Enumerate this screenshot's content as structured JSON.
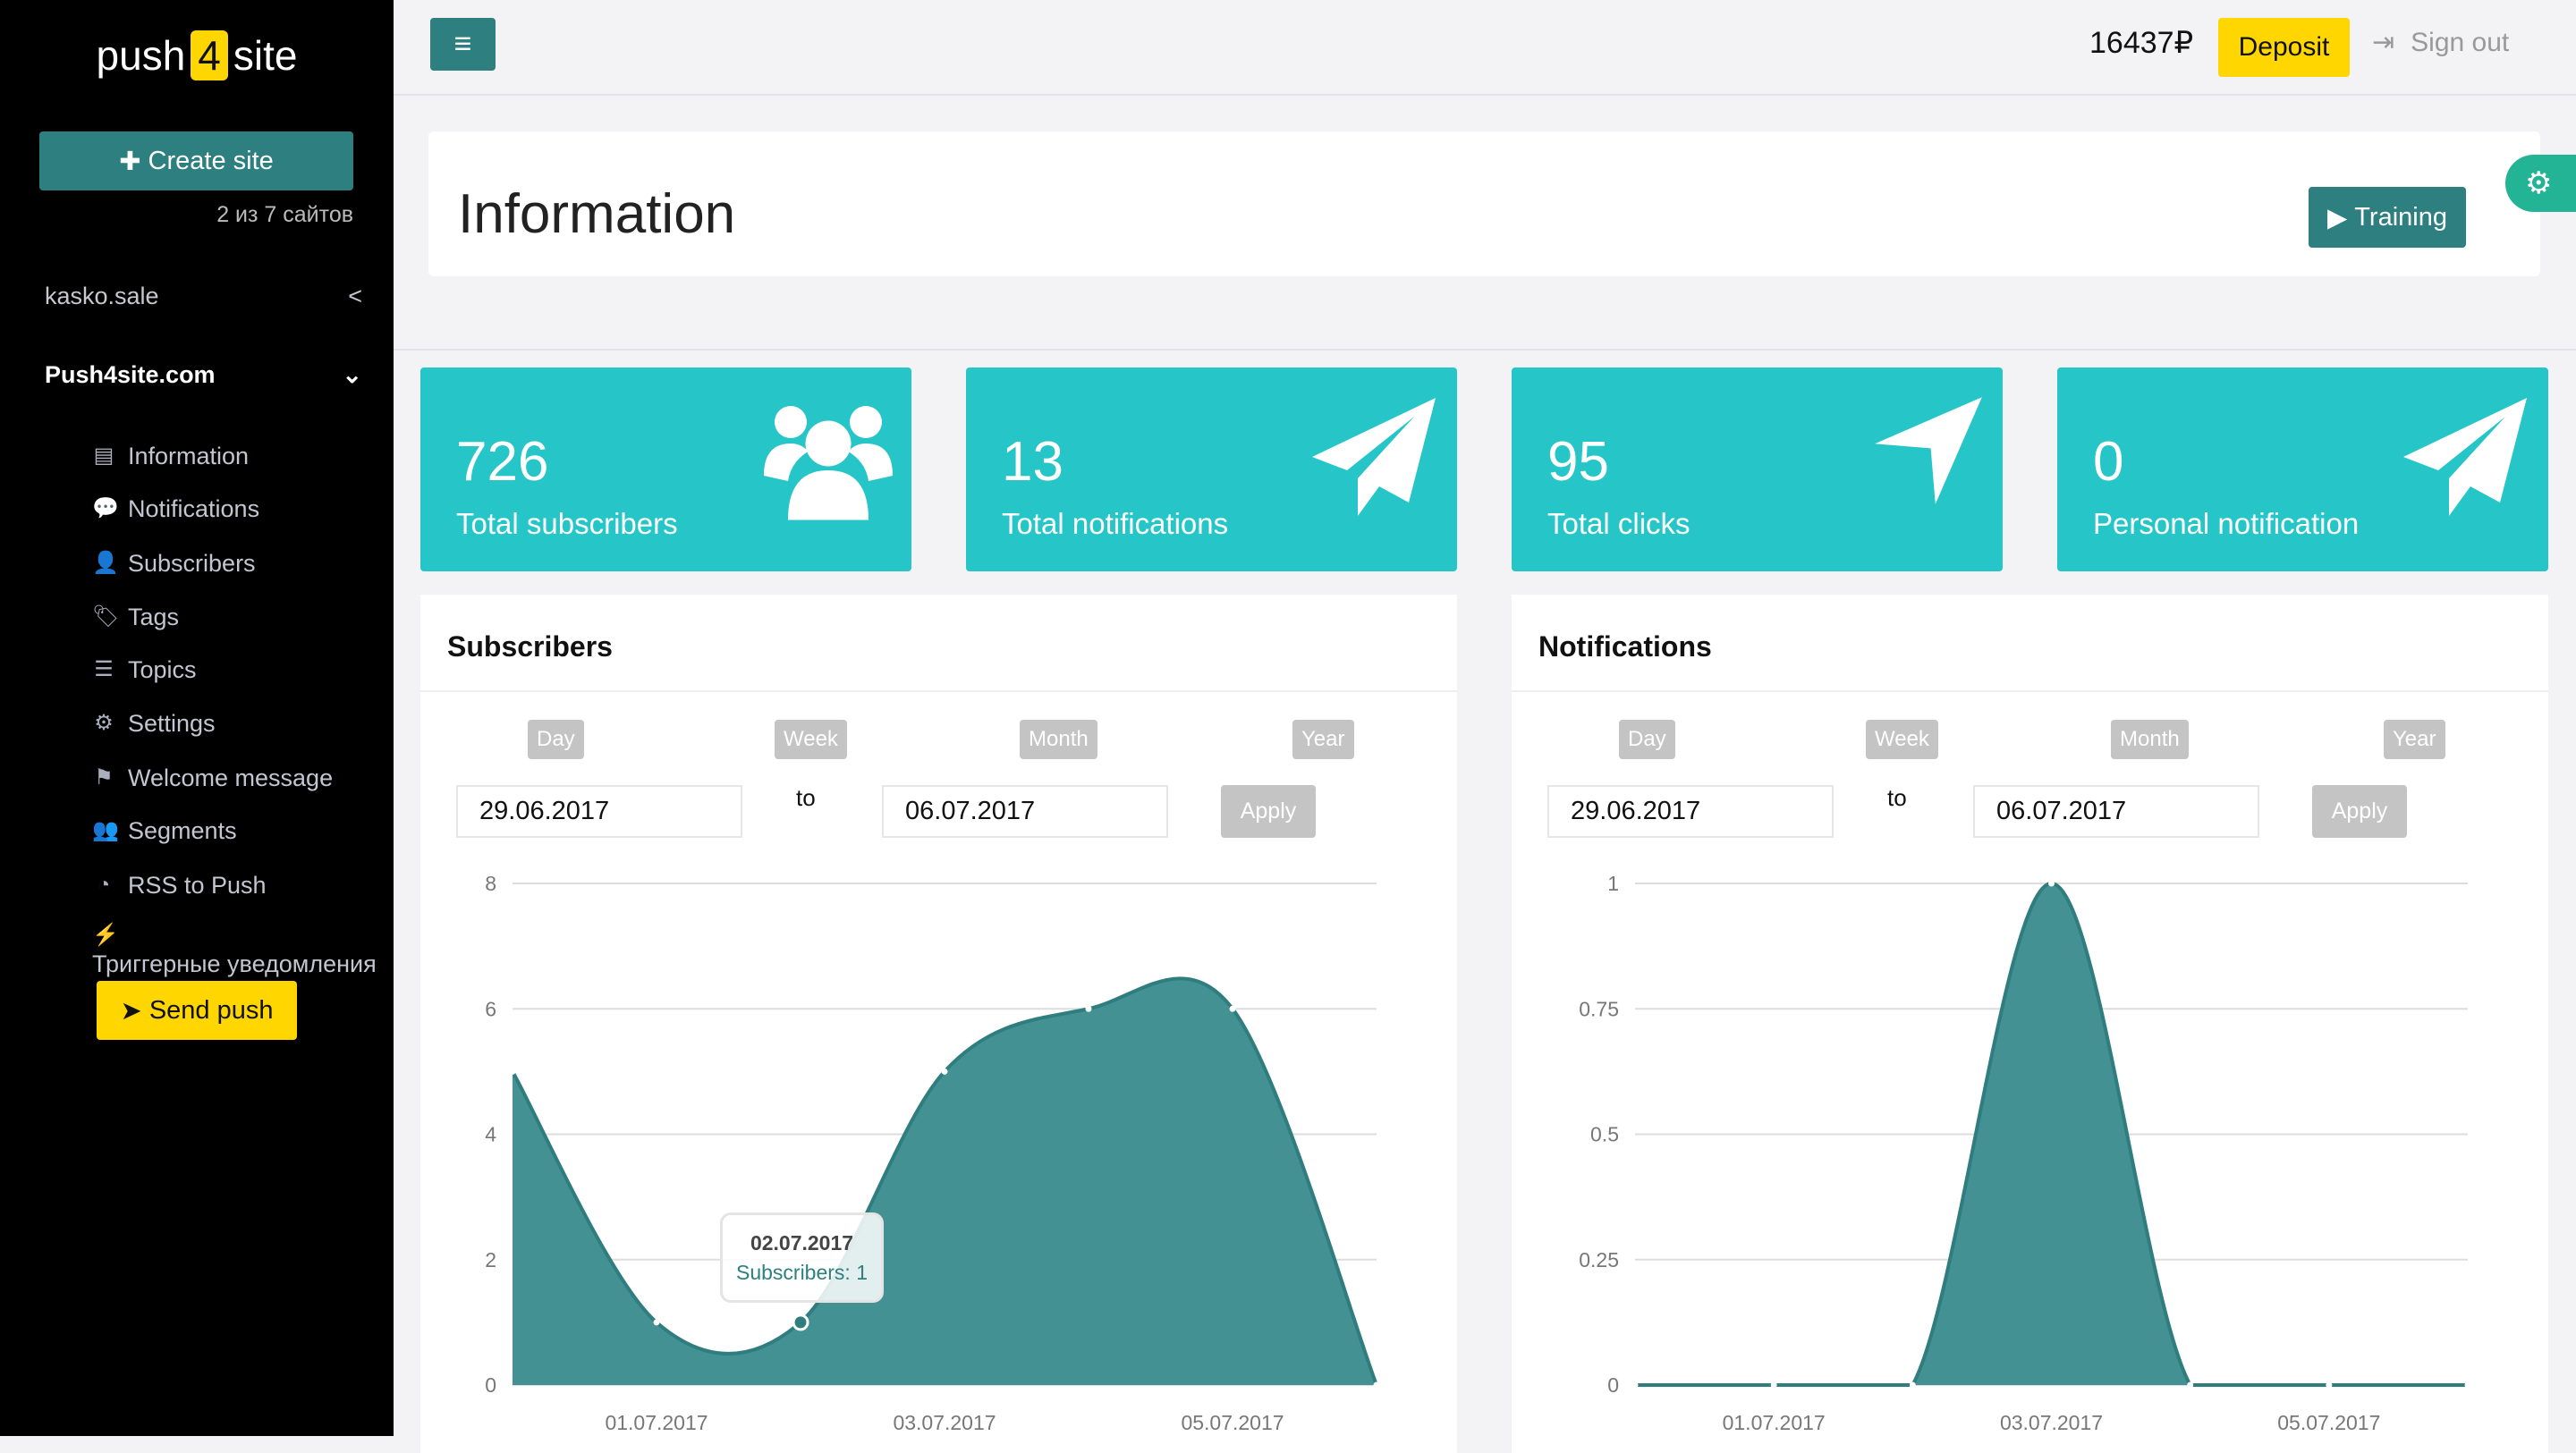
{
  "sidebar": {
    "logo": {
      "left": "push",
      "mid": "4",
      "right": "site"
    },
    "create_site": "Create site",
    "sites_count": "2 из 7 сайтов",
    "sites": [
      {
        "name": "kasko.sale",
        "chevron": "<"
      },
      {
        "name": "Push4site.com",
        "chevron": "⌄"
      }
    ],
    "items": [
      {
        "label": "Information",
        "icon": "list-alt-icon"
      },
      {
        "label": "Notifications",
        "icon": "comment-icon"
      },
      {
        "label": "Subscribers",
        "icon": "user-icon"
      },
      {
        "label": "Tags",
        "icon": "tag-icon"
      },
      {
        "label": "Topics",
        "icon": "bars-icon"
      },
      {
        "label": "Settings",
        "icon": "gear-icon"
      },
      {
        "label": "Welcome message",
        "icon": "flag-icon"
      },
      {
        "label": "Segments",
        "icon": "users-icon"
      },
      {
        "label": "RSS to Push",
        "icon": "rss-icon"
      },
      {
        "label": "Триггерные уведомления",
        "icon": "plug-icon"
      }
    ],
    "send_push": "Send push"
  },
  "topbar": {
    "menu_icon": "bars-icon",
    "balance": "16437₽",
    "deposit": "Deposit",
    "sign_out": "Sign out"
  },
  "page": {
    "title": "Information",
    "training": "Training"
  },
  "stats": [
    {
      "value": "726",
      "label": "Total subscribers",
      "icon": "users-icon"
    },
    {
      "value": "13",
      "label": "Total notifications",
      "icon": "paper-plane-icon"
    },
    {
      "value": "95",
      "label": "Total clicks",
      "icon": "location-arrow-icon"
    },
    {
      "value": "0",
      "label": "Personal notification",
      "icon": "paper-plane-icon"
    }
  ],
  "filters": {
    "periods": [
      "Day",
      "Week",
      "Month",
      "Year"
    ],
    "from": "29.06.2017",
    "to_label": "to",
    "to": "06.07.2017",
    "apply": "Apply"
  },
  "tooltip": {
    "date": "02.07.2017",
    "text": "Subscribers: 1"
  },
  "colors": {
    "accent": "#2d7f80",
    "card": "#26c6c8",
    "yellow": "#ffd600",
    "area": "#439192",
    "line": "#2f7d7e",
    "sidebar": "#000000"
  },
  "chart_data": [
    {
      "type": "area",
      "title": "Subscribers",
      "x": [
        "30.06.2017",
        "01.07.2017",
        "02.07.2017",
        "03.07.2017",
        "04.07.2017",
        "05.07.2017",
        "06.07.2017"
      ],
      "values": [
        5,
        1,
        1,
        5,
        6,
        6,
        0
      ],
      "xticks": [
        "01.07.2017",
        "03.07.2017",
        "05.07.2017"
      ],
      "yticks": [
        "0",
        "2",
        "4",
        "6",
        "8"
      ],
      "ylim": [
        0,
        8
      ],
      "grid": true
    },
    {
      "type": "area",
      "title": "Notifications",
      "x": [
        "30.06.2017",
        "01.07.2017",
        "02.07.2017",
        "03.07.2017",
        "04.07.2017",
        "05.07.2017",
        "06.07.2017"
      ],
      "values": [
        0,
        0,
        0,
        1,
        0,
        0,
        0
      ],
      "xticks": [
        "01.07.2017",
        "03.07.2017",
        "05.07.2017"
      ],
      "yticks": [
        "0",
        "0.25",
        "0.5",
        "0.75",
        "1"
      ],
      "ylim": [
        0,
        1
      ],
      "grid": true
    }
  ]
}
